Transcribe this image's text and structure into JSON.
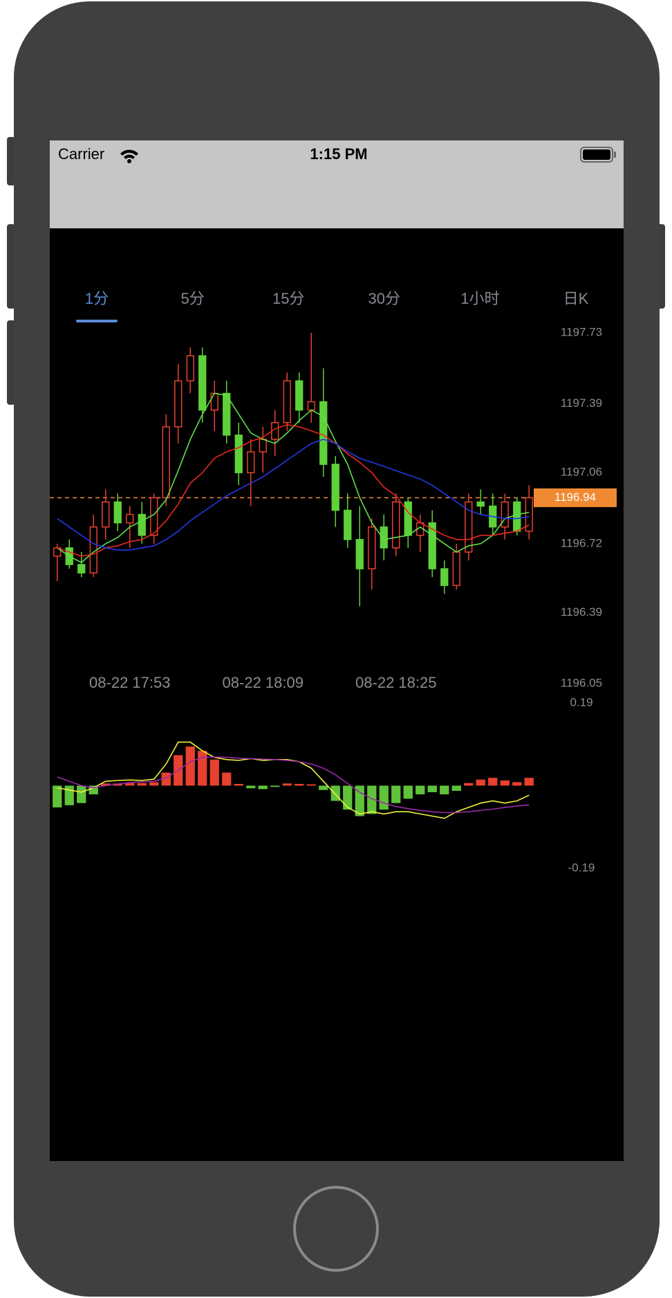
{
  "status_bar": {
    "carrier": "Carrier",
    "time": "1:15 PM"
  },
  "tabs": {
    "items": [
      "1分",
      "5分",
      "15分",
      "30分",
      "1小时",
      "日K"
    ],
    "selected": 0
  },
  "chart_data": [
    {
      "type": "candlestick",
      "categories": [
        null,
        null,
        null,
        null,
        null,
        null,
        "08-22 17:53",
        null,
        null,
        null,
        null,
        null,
        null,
        null,
        null,
        null,
        null,
        "08-22 18:09",
        null,
        null,
        null,
        null,
        null,
        null,
        null,
        null,
        null,
        null,
        "08-22 18:25",
        null,
        null,
        null,
        null,
        null,
        null,
        null,
        null,
        null,
        null,
        null
      ],
      "open": [
        1196.66,
        1196.7,
        1196.62,
        1196.58,
        1196.8,
        1196.92,
        1196.82,
        1196.86,
        1196.76,
        1196.94,
        1197.28,
        1197.5,
        1197.62,
        1197.36,
        1197.44,
        1197.24,
        1197.06,
        1197.16,
        1197.22,
        1197.3,
        1197.5,
        1197.36,
        1197.4,
        1197.1,
        1196.88,
        1196.74,
        1196.6,
        1196.8,
        1196.7,
        1196.92,
        1196.76,
        1196.82,
        1196.6,
        1196.52,
        1196.68,
        1196.92,
        1196.9,
        1196.8,
        1196.92,
        1196.78
      ],
      "high": [
        1196.72,
        1196.74,
        1196.68,
        1196.86,
        1196.98,
        1196.96,
        1196.9,
        1196.92,
        1196.96,
        1197.34,
        1197.58,
        1197.66,
        1197.66,
        1197.5,
        1197.5,
        1197.3,
        1197.22,
        1197.28,
        1197.36,
        1197.54,
        1197.54,
        1197.73,
        1197.56,
        1197.14,
        1196.96,
        1196.9,
        1196.84,
        1196.86,
        1196.96,
        1196.94,
        1196.86,
        1196.88,
        1196.64,
        1196.72,
        1196.96,
        1196.98,
        1196.96,
        1196.96,
        1196.94,
        1197.0
      ],
      "low": [
        1196.54,
        1196.6,
        1196.56,
        1196.56,
        1196.74,
        1196.78,
        1196.7,
        1196.72,
        1196.72,
        1196.9,
        1197.2,
        1197.44,
        1197.3,
        1197.26,
        1197.2,
        1197.0,
        1196.9,
        1197.06,
        1197.14,
        1197.26,
        1197.3,
        1197.3,
        1197.04,
        1196.8,
        1196.7,
        1196.42,
        1196.5,
        1196.64,
        1196.66,
        1196.7,
        1196.68,
        1196.56,
        1196.48,
        1196.5,
        1196.64,
        1196.86,
        1196.76,
        1196.74,
        1196.76,
        1196.74
      ],
      "close": [
        1196.7,
        1196.62,
        1196.58,
        1196.8,
        1196.92,
        1196.82,
        1196.86,
        1196.76,
        1196.94,
        1197.28,
        1197.5,
        1197.62,
        1197.36,
        1197.44,
        1197.24,
        1197.06,
        1197.16,
        1197.22,
        1197.3,
        1197.5,
        1197.36,
        1197.4,
        1197.1,
        1196.88,
        1196.74,
        1196.6,
        1196.8,
        1196.7,
        1196.92,
        1196.76,
        1196.82,
        1196.6,
        1196.52,
        1196.68,
        1196.92,
        1196.9,
        1196.8,
        1196.92,
        1196.78,
        1196.94
      ],
      "up_color": "#e8412f",
      "down_color": "#5fd13a",
      "series": [
        {
          "color": "#5fe04a",
          "values": [
            1196.7,
            1196.66,
            1196.63,
            1196.68,
            1196.72,
            1196.75,
            1196.8,
            1196.83,
            1196.86,
            1196.93,
            1197.07,
            1197.22,
            1197.34,
            1197.44,
            1197.43,
            1197.34,
            1197.25,
            1197.22,
            1197.2,
            1197.25,
            1197.31,
            1197.36,
            1197.33,
            1197.21,
            1197.1,
            1196.94,
            1196.82,
            1196.74,
            1196.75,
            1196.76,
            1196.8,
            1196.76,
            1196.72,
            1196.68,
            1196.71,
            1196.72,
            1196.76,
            1196.84,
            1196.86,
            1196.87
          ]
        },
        {
          "color": "#e8291f",
          "values": [
            1196.7,
            1196.68,
            1196.66,
            1196.67,
            1196.7,
            1196.71,
            1196.73,
            1196.74,
            1196.77,
            1196.83,
            1196.91,
            1197.01,
            1197.06,
            1197.13,
            1197.16,
            1197.18,
            1197.21,
            1197.23,
            1197.27,
            1197.29,
            1197.28,
            1197.26,
            1197.24,
            1197.2,
            1197.15,
            1197.11,
            1197.06,
            1196.99,
            1196.95,
            1196.87,
            1196.82,
            1196.79,
            1196.76,
            1196.74,
            1196.74,
            1196.76,
            1196.76,
            1196.77,
            1196.78,
            1196.81
          ]
        },
        {
          "color": "#2438e8",
          "values": [
            1196.84,
            1196.8,
            1196.76,
            1196.72,
            1196.7,
            1196.69,
            1196.69,
            1196.7,
            1196.71,
            1196.74,
            1196.78,
            1196.83,
            1196.87,
            1196.91,
            1196.95,
            1196.98,
            1197.01,
            1197.04,
            1197.08,
            1197.12,
            1197.16,
            1197.2,
            1197.22,
            1197.2,
            1197.16,
            1197.13,
            1197.11,
            1197.09,
            1197.07,
            1197.05,
            1197.03,
            1197.0,
            1196.96,
            1196.92,
            1196.88,
            1196.86,
            1196.85,
            1196.84,
            1196.84,
            1196.85
          ]
        }
      ],
      "ylim": [
        1196.05,
        1197.73
      ],
      "yticks": [
        1197.73,
        1197.39,
        1197.06,
        1196.72,
        1196.39,
        1196.05
      ],
      "last_price": 1196.94,
      "last_price_color": "#f08a32"
    },
    {
      "type": "macd",
      "values": [
        -0.05,
        -0.045,
        -0.04,
        -0.02,
        0.005,
        0.005,
        0.006,
        0.006,
        0.008,
        0.03,
        0.07,
        0.09,
        0.08,
        0.06,
        0.03,
        0.004,
        -0.006,
        -0.008,
        -0.003,
        0.005,
        0.004,
        0.003,
        -0.01,
        -0.035,
        -0.055,
        -0.07,
        -0.065,
        -0.055,
        -0.04,
        -0.03,
        -0.02,
        -0.015,
        -0.02,
        -0.012,
        0.006,
        0.014,
        0.018,
        0.012,
        0.008,
        0.018
      ],
      "up_color": "#e8412f",
      "down_color": "#5fc23a",
      "series": [
        {
          "color": "#f2f23a",
          "values": [
            -0.005,
            -0.01,
            -0.015,
            -0.005,
            0.01,
            0.012,
            0.013,
            0.012,
            0.015,
            0.05,
            0.1,
            0.1,
            0.08,
            0.065,
            0.06,
            0.058,
            0.062,
            0.058,
            0.06,
            0.06,
            0.055,
            0.04,
            0.01,
            -0.02,
            -0.05,
            -0.065,
            -0.06,
            -0.065,
            -0.06,
            -0.06,
            -0.065,
            -0.07,
            -0.075,
            -0.06,
            -0.05,
            -0.04,
            -0.035,
            -0.04,
            -0.035,
            -0.022
          ]
        },
        {
          "color": "#9a2aa8",
          "values": [
            0.02,
            0.01,
            0.0,
            -0.005,
            0.0,
            0.004,
            0.007,
            0.009,
            0.01,
            0.018,
            0.035,
            0.055,
            0.065,
            0.066,
            0.065,
            0.063,
            0.062,
            0.061,
            0.06,
            0.058,
            0.055,
            0.05,
            0.04,
            0.025,
            0.005,
            -0.015,
            -0.03,
            -0.04,
            -0.048,
            -0.053,
            -0.057,
            -0.06,
            -0.062,
            -0.062,
            -0.06,
            -0.057,
            -0.054,
            -0.05,
            -0.047,
            -0.044
          ]
        }
      ],
      "ylim": [
        -0.19,
        0.19
      ],
      "yticks": [
        0.19,
        -0.19
      ]
    }
  ]
}
